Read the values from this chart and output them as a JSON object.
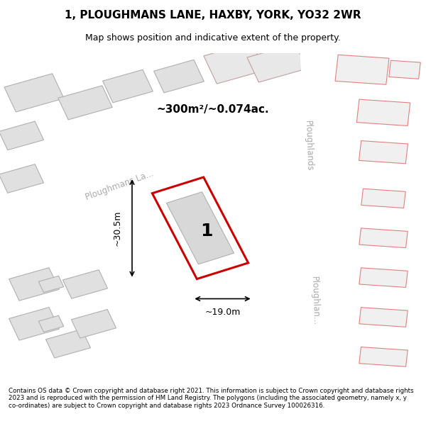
{
  "title": "1, PLOUGHMANS LANE, HAXBY, YORK, YO32 2WR",
  "subtitle": "Map shows position and indicative extent of the property.",
  "footer": "Contains OS data © Crown copyright and database right 2021. This information is subject to Crown copyright and database rights 2023 and is reproduced with the permission of HM Land Registry. The polygons (including the associated geometry, namely x, y co-ordinates) are subject to Crown copyright and database rights 2023 Ordnance Survey 100026316.",
  "bg_color": "#f5f5f5",
  "map_bg": "#f5f5f5",
  "road_color": "#ffffff",
  "building_fill": "#e0e0e0",
  "building_edge": "#c0c0c0",
  "highlight_fill": "#f8f8f8",
  "highlight_edge": "#cc0000",
  "road_label_color": "#a0a0a0",
  "area_label": "~300m²/~0.074ac.",
  "plot_number": "1",
  "dim_width": "~19.0m",
  "dim_height": "~30.5m",
  "street_name_1": "Ploughmans La...",
  "street_name_right_1": "Ploughlands",
  "street_name_right_2": "Ploughlan..."
}
